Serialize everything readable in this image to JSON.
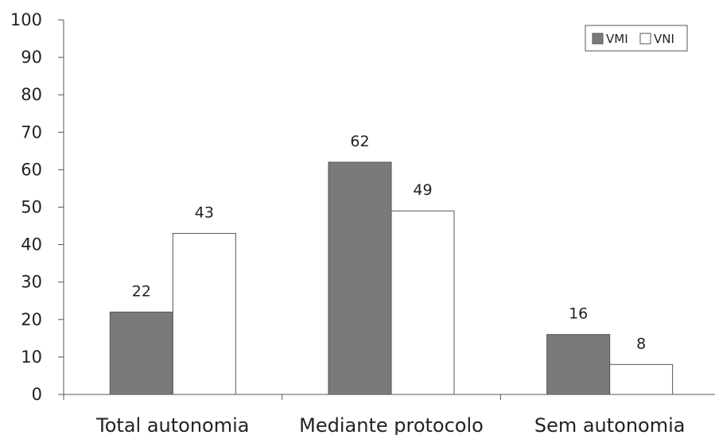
{
  "chart_data": {
    "type": "bar",
    "title": "",
    "xlabel": "",
    "ylabel": "",
    "categories": [
      "Total autonomia",
      "Mediante protocolo",
      "Sem autonomia"
    ],
    "series": [
      {
        "name": "VMI",
        "values": [
          22,
          62,
          16
        ],
        "color": "#7a7a7a"
      },
      {
        "name": "VNI",
        "values": [
          43,
          49,
          8
        ],
        "color": "#ffffff"
      }
    ],
    "ylim": [
      0,
      100
    ],
    "yticks": [
      0,
      10,
      20,
      30,
      40,
      50,
      60,
      70,
      80,
      90,
      100
    ],
    "grid": false,
    "legend_position": "top-right",
    "data_labels": true
  }
}
